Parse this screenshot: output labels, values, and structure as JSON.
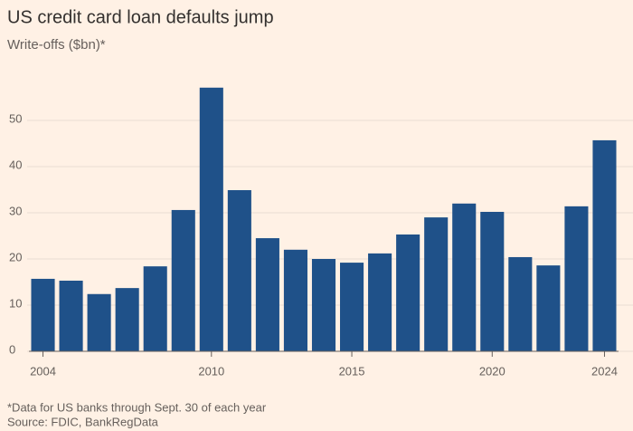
{
  "chart_data": {
    "type": "bar",
    "title": "US credit card loan defaults jump",
    "subtitle": "Write-offs ($bn)*",
    "categories": [
      "2004",
      null,
      null,
      null,
      null,
      null,
      "2010",
      null,
      null,
      null,
      null,
      "2015",
      null,
      null,
      null,
      null,
      "2020",
      null,
      null,
      null,
      "2024"
    ],
    "values": [
      15.7,
      15.3,
      12.4,
      13.7,
      18.4,
      30.6,
      57.1,
      34.9,
      24.5,
      22.0,
      20.0,
      19.2,
      21.2,
      25.3,
      29.0,
      32.0,
      30.2,
      20.4,
      18.6,
      31.4,
      45.7
    ],
    "color": "#1f5189",
    "ylim": [
      0,
      60
    ],
    "yticks": [
      0,
      10,
      20,
      30,
      40,
      50
    ],
    "grid": true,
    "footnote": "*Data for US banks through Sept. 30 of each year",
    "source": "Source: FDIC, BankRegData"
  }
}
